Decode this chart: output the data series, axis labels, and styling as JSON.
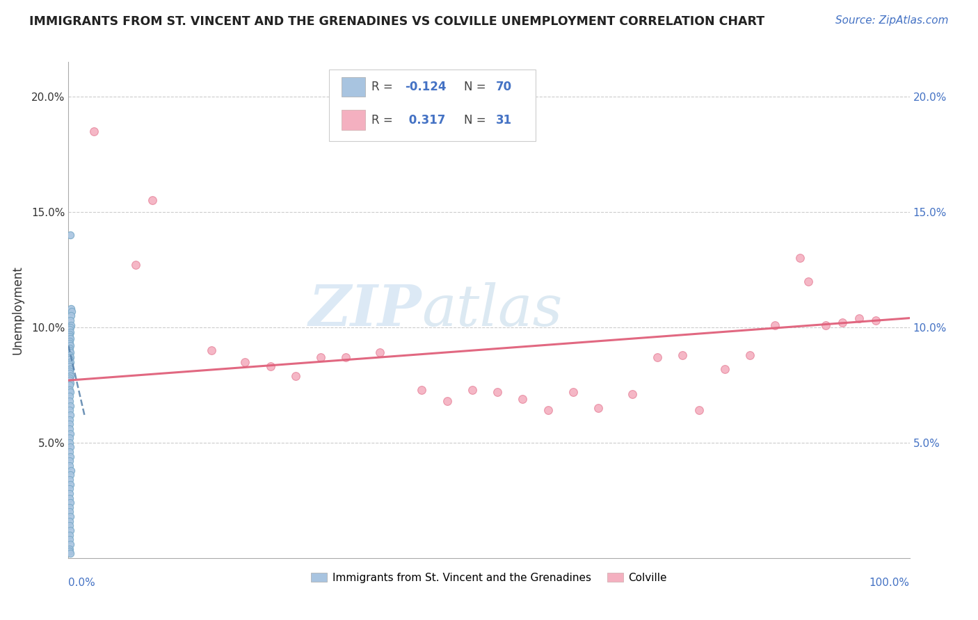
{
  "title": "IMMIGRANTS FROM ST. VINCENT AND THE GRENADINES VS COLVILLE UNEMPLOYMENT CORRELATION CHART",
  "source": "Source: ZipAtlas.com",
  "ylabel": "Unemployment",
  "y_ticks": [
    0.0,
    0.05,
    0.1,
    0.15,
    0.2
  ],
  "y_tick_labels_left": [
    "",
    "5.0%",
    "10.0%",
    "15.0%",
    "20.0%"
  ],
  "y_tick_labels_right": [
    "",
    "5.0%",
    "10.0%",
    "15.0%",
    "20.0%"
  ],
  "xlim": [
    0.0,
    1.0
  ],
  "ylim": [
    0.0,
    0.215
  ],
  "legend1_label": "Immigrants from St. Vincent and the Grenadines",
  "legend2_label": "Colville",
  "R_blue": -0.124,
  "N_blue": 70,
  "R_pink": 0.317,
  "N_pink": 31,
  "blue_color": "#a8c4e0",
  "blue_edge_color": "#7aaac8",
  "pink_color": "#f4b0c0",
  "pink_edge_color": "#e88aa0",
  "blue_line_color": "#5580aa",
  "pink_line_color": "#e0607a",
  "grid_color": "#cccccc",
  "blue_scatter_x": [
    0.002,
    0.003,
    0.004,
    0.003,
    0.002,
    0.003,
    0.002,
    0.001,
    0.002,
    0.001,
    0.001,
    0.002,
    0.001,
    0.001,
    0.002,
    0.001,
    0.001,
    0.002,
    0.001,
    0.002,
    0.001,
    0.002,
    0.001,
    0.001,
    0.002,
    0.001,
    0.001,
    0.002,
    0.001,
    0.001,
    0.002,
    0.001,
    0.001,
    0.002,
    0.001,
    0.001,
    0.002,
    0.001,
    0.002,
    0.001,
    0.001,
    0.001,
    0.002,
    0.001,
    0.001,
    0.002,
    0.001,
    0.002,
    0.001,
    0.001,
    0.003,
    0.002,
    0.001,
    0.002,
    0.001,
    0.001,
    0.001,
    0.002,
    0.001,
    0.001,
    0.002,
    0.001,
    0.001,
    0.002,
    0.001,
    0.001,
    0.002,
    0.001,
    0.001,
    0.002
  ],
  "blue_scatter_y": [
    0.14,
    0.108,
    0.107,
    0.105,
    0.103,
    0.101,
    0.1,
    0.099,
    0.098,
    0.097,
    0.096,
    0.095,
    0.094,
    0.093,
    0.092,
    0.091,
    0.09,
    0.089,
    0.088,
    0.087,
    0.086,
    0.085,
    0.084,
    0.083,
    0.082,
    0.081,
    0.08,
    0.079,
    0.078,
    0.077,
    0.076,
    0.075,
    0.073,
    0.072,
    0.07,
    0.068,
    0.066,
    0.064,
    0.062,
    0.06,
    0.058,
    0.056,
    0.054,
    0.052,
    0.05,
    0.048,
    0.046,
    0.044,
    0.042,
    0.04,
    0.038,
    0.036,
    0.034,
    0.032,
    0.03,
    0.028,
    0.026,
    0.024,
    0.022,
    0.02,
    0.018,
    0.016,
    0.014,
    0.012,
    0.01,
    0.008,
    0.006,
    0.004,
    0.003,
    0.002
  ],
  "pink_scatter_x": [
    0.03,
    0.08,
    0.17,
    0.21,
    0.24,
    0.27,
    0.3,
    0.33,
    0.37,
    0.42,
    0.45,
    0.48,
    0.51,
    0.54,
    0.57,
    0.6,
    0.63,
    0.67,
    0.7,
    0.73,
    0.75,
    0.78,
    0.81,
    0.84,
    0.87,
    0.88,
    0.9,
    0.92,
    0.94,
    0.96,
    0.1
  ],
  "pink_scatter_y": [
    0.185,
    0.127,
    0.09,
    0.085,
    0.083,
    0.079,
    0.087,
    0.087,
    0.089,
    0.073,
    0.068,
    0.073,
    0.072,
    0.069,
    0.064,
    0.072,
    0.065,
    0.071,
    0.087,
    0.088,
    0.064,
    0.082,
    0.088,
    0.101,
    0.13,
    0.12,
    0.101,
    0.102,
    0.104,
    0.103,
    0.155
  ],
  "blue_trend_x": [
    0.0,
    0.019
  ],
  "blue_trend_y": [
    0.092,
    0.062
  ],
  "pink_trend_x": [
    0.0,
    1.0
  ],
  "pink_trend_y": [
    0.077,
    0.104
  ]
}
